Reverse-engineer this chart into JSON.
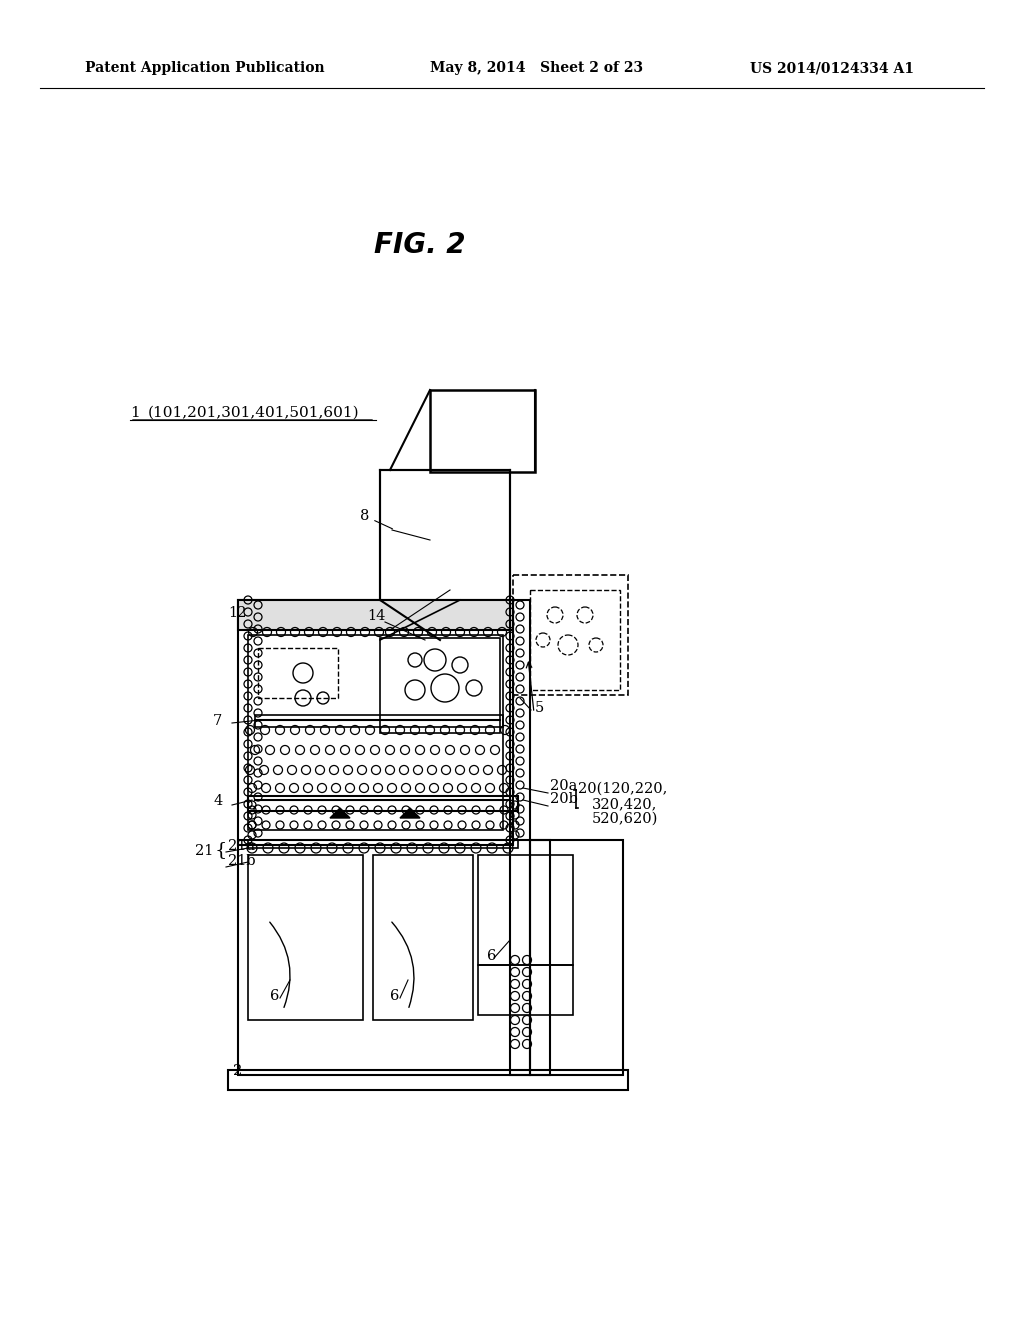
{
  "bg_color": "#ffffff",
  "header_left": "Patent Application Publication",
  "header_mid": "May 8, 2014   Sheet 2 of 23",
  "header_right": "US 2014/0124334 A1",
  "fig_title": "FIG. 2",
  "label_1": "1 (101,201,301,401,501,601)",
  "figsize": [
    10.24,
    13.2
  ],
  "dpi": 100
}
